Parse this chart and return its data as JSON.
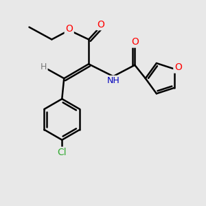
{
  "background_color": "#e8e8e8",
  "bond_color": "#000000",
  "bond_width": 1.8,
  "atom_colors": {
    "O": "#ff0000",
    "N": "#0000bb",
    "Cl": "#33aa33",
    "H": "#777777",
    "C": "#000000"
  },
  "font_size": 10,
  "fig_size": [
    3.0,
    3.0
  ],
  "dpi": 100
}
